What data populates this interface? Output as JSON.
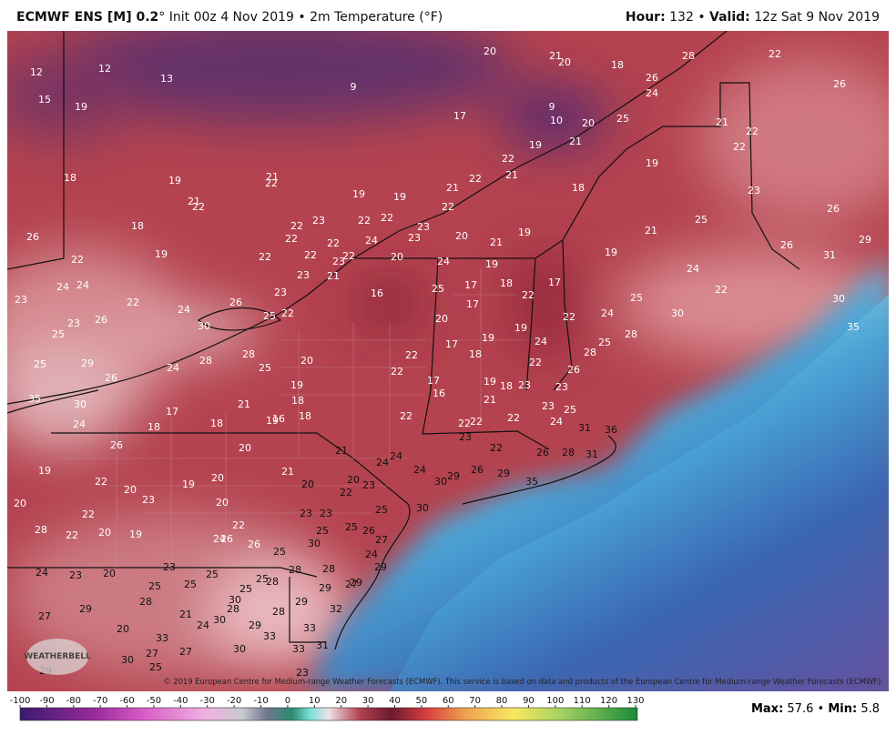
{
  "header": {
    "model": "ECMWF ENS [M] 0.2",
    "init": "° Init 00z 4 Nov 2019 • 2m Temperature (°F)",
    "hour_label": "Hour:",
    "hour": "132 •",
    "valid_label": "Valid:",
    "valid": "12z Sat 9 Nov 2019"
  },
  "copyright": "© 2019 European Centre for Medium-range Weather Forecasts (ECMWF). This service is based on data and products of the European Centre for Medium-range Weather Forecasts (ECMWF).",
  "logo": "WEATHERBELL",
  "map_labels": [
    12,
    12,
    13,
    15,
    19,
    9,
    20,
    21,
    20,
    18,
    26,
    28,
    22,
    26,
    17,
    9,
    10,
    20,
    25,
    24,
    21,
    22,
    22,
    21,
    19,
    22,
    21,
    22,
    21,
    22,
    19,
    19,
    21,
    22,
    19,
    21,
    22,
    18,
    18,
    19,
    22,
    26,
    22,
    22,
    23,
    22,
    22,
    24,
    23,
    23,
    22,
    22,
    22,
    20,
    20,
    21,
    19,
    18,
    19,
    23,
    25,
    21,
    26,
    26,
    29,
    31,
    19,
    24,
    25,
    22,
    30,
    35,
    30,
    24,
    28,
    22,
    17,
    22,
    18,
    19,
    24,
    17,
    25,
    17,
    20,
    16,
    22,
    23,
    23,
    21,
    23,
    26,
    22,
    23,
    24,
    24,
    26,
    23,
    25,
    24,
    30,
    25,
    22,
    25,
    29,
    26,
    24,
    28,
    28,
    25,
    20,
    19,
    18,
    16,
    19,
    18,
    21,
    18,
    17,
    18,
    24,
    30,
    35,
    22,
    22,
    17,
    18,
    19,
    19,
    24,
    28,
    25,
    22,
    26,
    17,
    16,
    19,
    18,
    23,
    21,
    23,
    23,
    22,
    22,
    22,
    22,
    24,
    25,
    31,
    36,
    23,
    22,
    26,
    28,
    31,
    21,
    24,
    24,
    24,
    29,
    26,
    29,
    30,
    35,
    30,
    26,
    20,
    19,
    22,
    20,
    19,
    20,
    21,
    20,
    20,
    22,
    23,
    23,
    20,
    22,
    20,
    23,
    23,
    25,
    28,
    22,
    20,
    19,
    22,
    24,
    26,
    26,
    25,
    25,
    26,
    27,
    30,
    25,
    24,
    29,
    24,
    23,
    20,
    23,
    25,
    25,
    25,
    25,
    28,
    28,
    28,
    27,
    29,
    29,
    28,
    25,
    30,
    28,
    29,
    21,
    28,
    29,
    32,
    27,
    20,
    24,
    30,
    29,
    33,
    33,
    33,
    27,
    27,
    30,
    33,
    31,
    30,
    25,
    29,
    23,
    30
  ],
  "colorbar": {
    "ticks": [
      -100,
      -90,
      -80,
      -70,
      -60,
      -50,
      -40,
      -30,
      -20,
      -10,
      0,
      10,
      20,
      30,
      40,
      50,
      60,
      70,
      80,
      90,
      100,
      110,
      120,
      130
    ],
    "max_label": "Max:",
    "max_value": "57.6",
    "separator": "•",
    "min_label": "Min:",
    "min_value": "5.8"
  }
}
